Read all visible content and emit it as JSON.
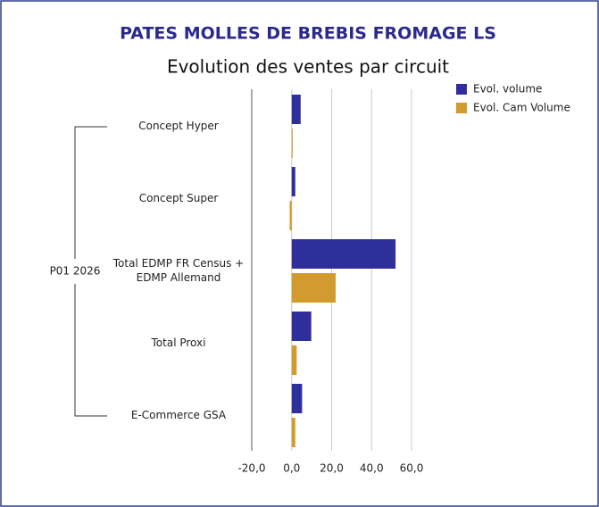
{
  "chart_data": {
    "type": "barh",
    "title": "PATES MOLLES DE BREBIS FROMAGE LS",
    "subtitle": "Evolution des ventes par circuit",
    "group_label": "P01 2026",
    "categories": [
      "Concept Hyper",
      "Concept Super",
      "Total EDMP FR Census + EDMP Allemand",
      "Total Proxi",
      "E-Commerce GSA"
    ],
    "series": [
      {
        "name": "Evol. volume",
        "color": "#2f2f9b",
        "values": [
          4.5,
          1.8,
          52,
          9.8,
          5.2
        ]
      },
      {
        "name": "Evol. Cam Volume",
        "color": "#d39b2e",
        "values": [
          0.5,
          -1.0,
          22,
          2.5,
          1.8
        ]
      }
    ],
    "xlim": [
      -20,
      60
    ],
    "xticks": [
      {
        "value": -20,
        "label": "-20,0"
      },
      {
        "value": 0,
        "label": "0,0"
      },
      {
        "value": 20,
        "label": "20,0"
      },
      {
        "value": 40,
        "label": "40,0"
      },
      {
        "value": 60,
        "label": "60,0"
      }
    ],
    "grid": true
  }
}
